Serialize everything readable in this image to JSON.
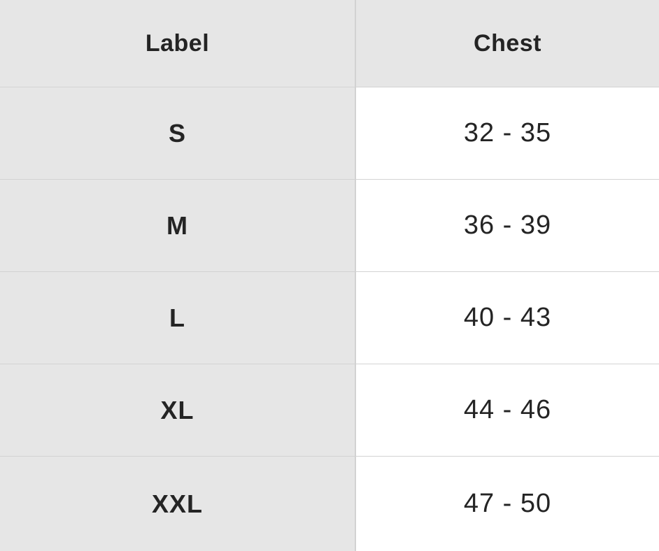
{
  "table": {
    "headers": [
      "Label",
      "Chest"
    ],
    "rows": [
      {
        "label": "S",
        "chest": "32 - 35"
      },
      {
        "label": "M",
        "chest": "36 - 39"
      },
      {
        "label": "L",
        "chest": "40 - 43"
      },
      {
        "label": "XL",
        "chest": "44 - 46"
      },
      {
        "label": "XXL",
        "chest": "47 - 50"
      }
    ]
  },
  "colors": {
    "label_column_bg": "#e6e6e6",
    "value_column_bg": "#ffffff",
    "text": "#242424",
    "border": "#d3d3d3"
  }
}
